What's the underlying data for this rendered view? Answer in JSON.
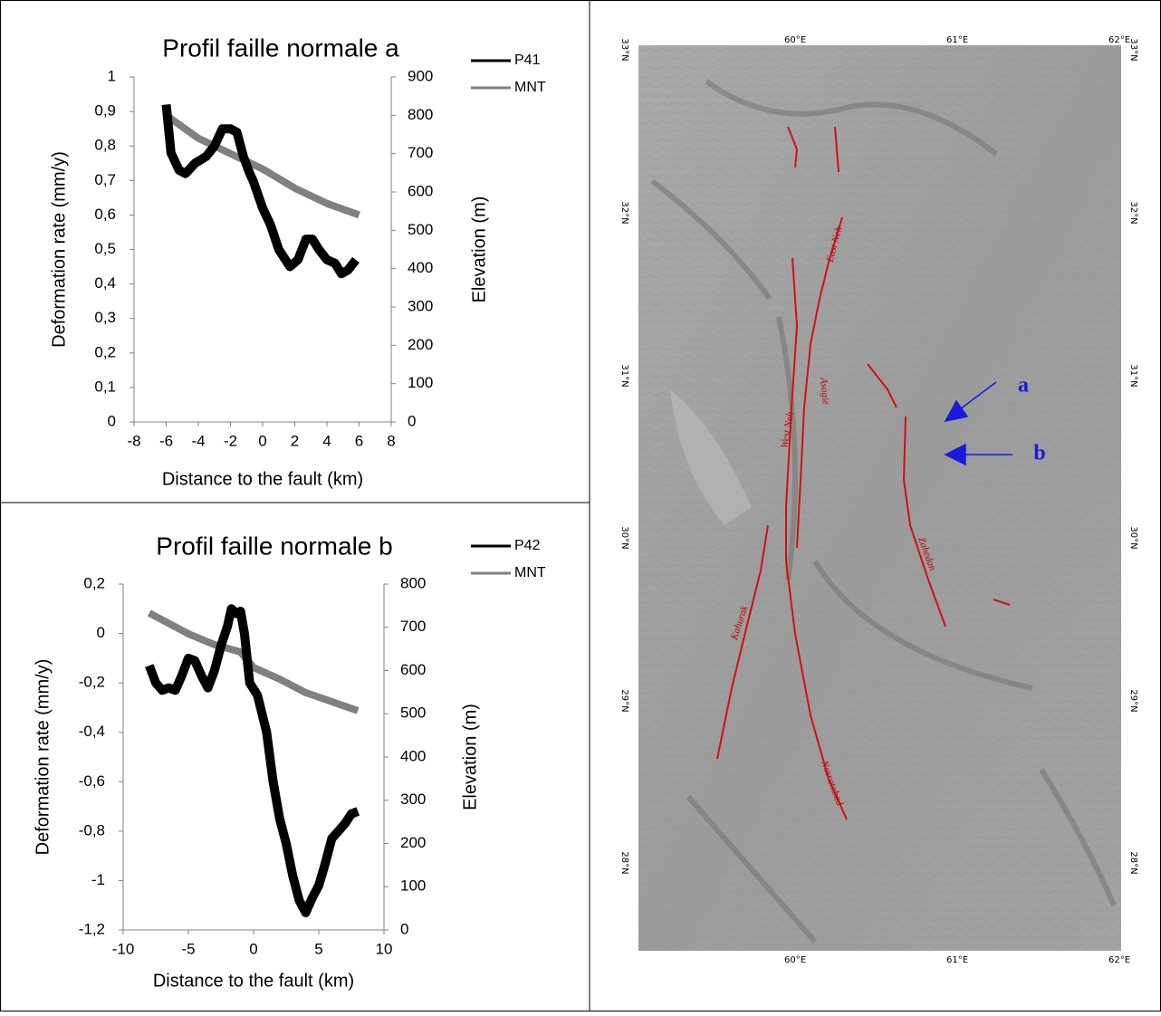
{
  "chart_data": [
    {
      "type": "line",
      "title": "Profil faille normale a",
      "x_label": "Distance to the fault (km)",
      "y_label": "Deformation rate (mm/y)",
      "y2_label": "Elevation (m)",
      "xlim": [
        -8,
        8
      ],
      "xticks": [
        -8,
        -6,
        -4,
        -2,
        0,
        2,
        4,
        6,
        8
      ],
      "ylim": [
        0,
        1
      ],
      "yticks": [
        0,
        {
          "value": 0.1,
          "label": "0,1"
        },
        {
          "value": 0.2,
          "label": "0,2"
        },
        {
          "value": 0.3,
          "label": "0,3"
        },
        {
          "value": 0.4,
          "label": "0,4"
        },
        {
          "value": 0.5,
          "label": "0,5"
        },
        {
          "value": 0.6,
          "label": "0,6"
        },
        {
          "value": 0.7,
          "label": "0,7"
        },
        {
          "value": 0.8,
          "label": "0,8"
        },
        {
          "value": 0.9,
          "label": "0,9"
        },
        1
      ],
      "y2lim": [
        0,
        900
      ],
      "y2ticks": [
        0,
        100,
        200,
        300,
        400,
        500,
        600,
        700,
        800,
        900
      ],
      "series": [
        {
          "name": "P41",
          "color": "#000000",
          "x": [
            -6,
            -5.7,
            -5.2,
            -4.8,
            -4.2,
            -3.5,
            -3,
            -2.5,
            -2,
            -1.6,
            -1.2,
            -0.8,
            -0.6,
            0,
            0.5,
            1,
            1.7,
            2.2,
            2.7,
            3.1,
            3.5,
            4,
            4.5,
            4.9,
            5.3,
            5.8
          ],
          "values": [
            0.92,
            0.78,
            0.73,
            0.72,
            0.75,
            0.77,
            0.8,
            0.85,
            0.85,
            0.84,
            0.77,
            0.72,
            0.7,
            0.62,
            0.57,
            0.5,
            0.45,
            0.47,
            0.53,
            0.53,
            0.5,
            0.47,
            0.46,
            0.43,
            0.44,
            0.47
          ]
        },
        {
          "name": "MNT",
          "color": "#808080",
          "axis": "y2",
          "x": [
            -6,
            -4,
            -2,
            0,
            2,
            4,
            6
          ],
          "values": [
            800,
            740,
            700,
            660,
            610,
            570,
            540
          ]
        }
      ]
    },
    {
      "type": "line",
      "title": "Profil faille normale b",
      "x_label": "Distance to the fault (km)",
      "y_label": "Deformation rate (mm/y)",
      "y2_label": "Elevation (m)",
      "xlim": [
        -10,
        10
      ],
      "xticks": [
        -10,
        -5,
        0,
        5,
        10
      ],
      "ylim": [
        -1.2,
        0.2
      ],
      "yticks": [
        {
          "value": -1.2,
          "label": "-1,2"
        },
        -1,
        {
          "value": -0.8,
          "label": "-0,8"
        },
        {
          "value": -0.6,
          "label": "-0,6"
        },
        {
          "value": -0.4,
          "label": "-0,4"
        },
        {
          "value": -0.2,
          "label": "-0,2"
        },
        0,
        {
          "value": 0.2,
          "label": "0,2"
        }
      ],
      "y2lim": [
        0,
        800
      ],
      "y2ticks": [
        0,
        100,
        200,
        300,
        400,
        500,
        600,
        700,
        800
      ],
      "series": [
        {
          "name": "P42",
          "color": "#000000",
          "x": [
            -8,
            -7.5,
            -7,
            -6.5,
            -6,
            -5.5,
            -5,
            -4.5,
            -4,
            -3.5,
            -3,
            -2.5,
            -2,
            -1.7,
            -1.3,
            -1,
            -0.7,
            -0.3,
            0.3,
            1,
            1.5,
            2,
            2.5,
            3,
            3.5,
            4,
            4.5,
            5,
            5.5,
            6,
            6.5,
            7,
            7.5,
            8
          ],
          "values": [
            -0.13,
            -0.2,
            -0.23,
            -0.22,
            -0.23,
            -0.17,
            -0.1,
            -0.11,
            -0.17,
            -0.22,
            -0.15,
            -0.05,
            0.03,
            0.1,
            0.08,
            0.09,
            0,
            -0.2,
            -0.25,
            -0.4,
            -0.6,
            -0.75,
            -0.85,
            -0.98,
            -1.08,
            -1.13,
            -1.07,
            -1.02,
            -0.93,
            -0.83,
            -0.8,
            -0.77,
            -0.73,
            -0.72
          ]
        },
        {
          "name": "MNT",
          "color": "#808080",
          "axis": "y2",
          "x": [
            -8,
            -5,
            -3,
            -1,
            0,
            2,
            4,
            6,
            8
          ],
          "values": [
            733,
            685,
            660,
            643,
            607,
            580,
            549,
            528,
            507
          ]
        }
      ]
    }
  ],
  "map": {
    "lat_labels": [
      "33°N",
      "32°N",
      "31°N",
      "30°N",
      "29°N",
      "28°N"
    ],
    "lon_labels": [
      "60°E",
      "61°E",
      "62°E"
    ],
    "fault_names": [
      "East Neh",
      "Asagie",
      "West Neh",
      "Zahedan",
      "Kahurak",
      "Nosratabad"
    ],
    "markers": [
      "a",
      "b"
    ]
  }
}
